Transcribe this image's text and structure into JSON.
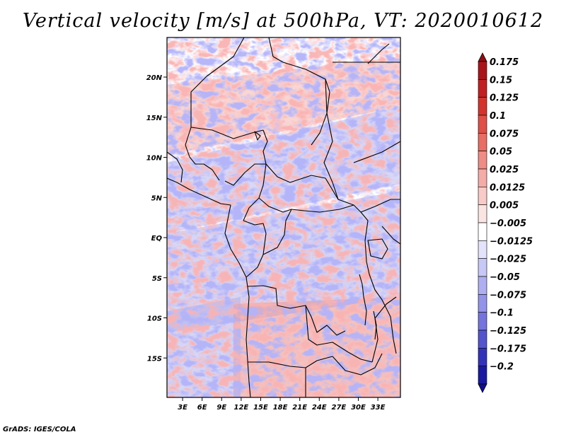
{
  "title": "Vertical velocity [m/s] at 500hPa, VT: 2020010612",
  "footer": "GrADS: IGES/COLA",
  "chart_data": {
    "type": "heatmap",
    "variable": "Vertical velocity",
    "units": "m/s",
    "level": "500hPa",
    "valid_time": "2020010612",
    "lon_range": [
      0,
      35
    ],
    "lat_range": [
      -20,
      25
    ],
    "x_ticks": [
      {
        "value": 3,
        "label": "3E"
      },
      {
        "value": 6,
        "label": "6E"
      },
      {
        "value": 9,
        "label": "9E"
      },
      {
        "value": 12,
        "label": "12E"
      },
      {
        "value": 15,
        "label": "15E"
      },
      {
        "value": 18,
        "label": "18E"
      },
      {
        "value": 21,
        "label": "21E"
      },
      {
        "value": 24,
        "label": "24E"
      },
      {
        "value": 27,
        "label": "27E"
      },
      {
        "value": 30,
        "label": "30E"
      },
      {
        "value": 33,
        "label": "33E"
      }
    ],
    "y_ticks": [
      {
        "value": 20,
        "label": "20N"
      },
      {
        "value": 15,
        "label": "15N"
      },
      {
        "value": 10,
        "label": "10N"
      },
      {
        "value": 5,
        "label": "5N"
      },
      {
        "value": 0,
        "label": "EQ"
      },
      {
        "value": -5,
        "label": "5S"
      },
      {
        "value": -10,
        "label": "10S"
      },
      {
        "value": -15,
        "label": "15S"
      }
    ],
    "colorbar": {
      "levels": [
        {
          "label": "0.175",
          "color": "#a8161c"
        },
        {
          "label": "0.15",
          "color": "#c02023"
        },
        {
          "label": "0.125",
          "color": "#d2352e"
        },
        {
          "label": "0.1",
          "color": "#de5048"
        },
        {
          "label": "0.075",
          "color": "#e76d65"
        },
        {
          "label": "0.05",
          "color": "#ee8c86"
        },
        {
          "label": "0.025",
          "color": "#f4aca8"
        },
        {
          "label": "0.0125",
          "color": "#f8cbc8"
        },
        {
          "label": "0.005",
          "color": "#fbe5e3"
        },
        {
          "label": "−0.005",
          "color": "#ffffff"
        },
        {
          "label": "−0.0125",
          "color": "#e3e3fb"
        },
        {
          "label": "−0.025",
          "color": "#c8c8f6"
        },
        {
          "label": "−0.05",
          "color": "#aeaef0"
        },
        {
          "label": "−0.075",
          "color": "#9393e8"
        },
        {
          "label": "−0.1",
          "color": "#7474dc"
        },
        {
          "label": "−0.125",
          "color": "#5454cc"
        },
        {
          "label": "−0.175",
          "color": "#3333b8"
        },
        {
          "label": "−0.2",
          "color": "#1a1aa0"
        }
      ],
      "top_color": "#8c0f14",
      "bottom_color": "#10108c"
    }
  }
}
